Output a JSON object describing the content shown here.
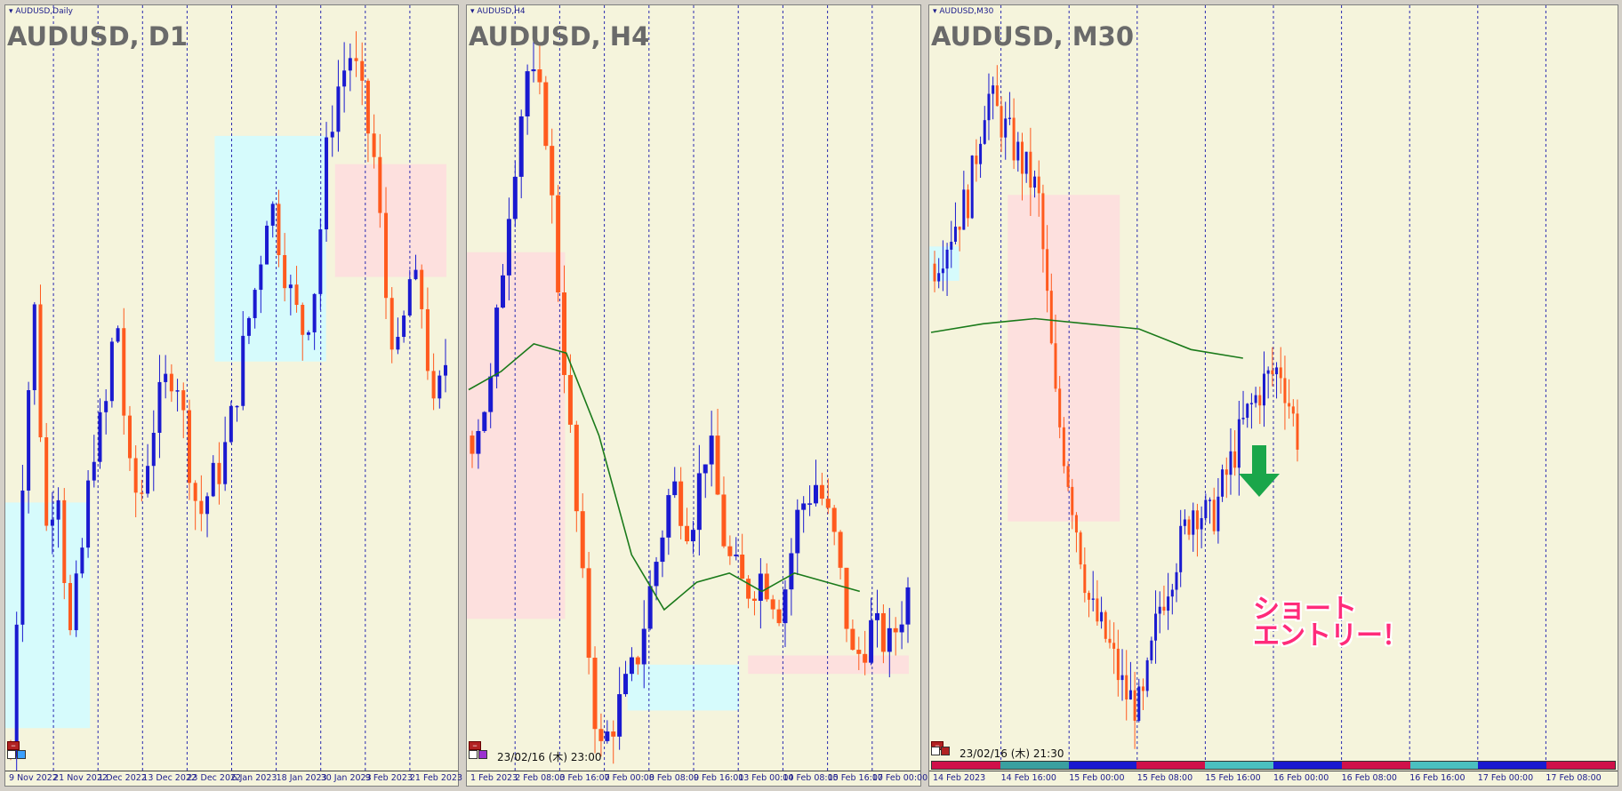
{
  "colors": {
    "background": "#f5f4dc",
    "bull": "#1a1ad0",
    "bear": "#ff5a1e",
    "ma": "#1a7a1a",
    "zone_blue": "#d6fbfc",
    "zone_pink": "#fde0de",
    "arrow": "#1aa64a",
    "annotation": "#ff2b7a"
  },
  "panes": [
    {
      "tab": "AUDUSD,Daily",
      "symbol": "AUDUSD, D1",
      "axis_labels": [
        "9 Nov 2022",
        "21 Nov 2022",
        "1 Dec 2022",
        "13 Dec 2022",
        "23 Dec 2022",
        "6 Jan 2023",
        "18 Jan 2023",
        "30 Jan 2023",
        "9 Feb 2023",
        "21 Feb 2023"
      ]
    },
    {
      "tab": "AUDUSD,H4",
      "symbol": "AUDUSD, H4",
      "cursor_time": "23/02/16 (木) 23:00",
      "axis_labels": [
        "1 Feb 2023",
        "2 Feb 08:00",
        "3 Feb 16:00",
        "7 Feb 00:00",
        "8 Feb 08:00",
        "9 Feb 16:00",
        "13 Feb 00:00",
        "14 Feb 08:00",
        "15 Feb 16:00",
        "17 Feb 00:00"
      ]
    },
    {
      "tab": "AUDUSD,M30",
      "symbol": "AUDUSD, M30",
      "cursor_time": "23/02/16 (木) 21:30",
      "axis_labels": [
        "14 Feb 2023",
        "14 Feb 16:00",
        "15 Feb 00:00",
        "15 Feb 08:00",
        "15 Feb 16:00",
        "16 Feb 00:00",
        "16 Feb 08:00",
        "16 Feb 16:00",
        "17 Feb 00:00",
        "17 Feb 08:00"
      ],
      "annotation": [
        "ショート",
        "エントリー！"
      ]
    }
  ],
  "chart_data": [
    {
      "type": "candlestick",
      "title": "AUDUSD, D1",
      "x": [
        "9 Nov 2022",
        "21 Nov 2022",
        "1 Dec 2022",
        "13 Dec 2022",
        "23 Dec 2022",
        "6 Jan 2023",
        "18 Jan 2023",
        "30 Jan 2023",
        "9 Feb 2023",
        "21 Feb 2023"
      ],
      "close_path": [
        0.62,
        0.67,
        0.7,
        0.66,
        0.67,
        0.64,
        0.655,
        0.675,
        0.68,
        0.7,
        0.67,
        0.665,
        0.678,
        0.685,
        0.69,
        0.675,
        0.662,
        0.668,
        0.672,
        0.682,
        0.695,
        0.705,
        0.72,
        0.71,
        0.7,
        0.695,
        0.705,
        0.73,
        0.74,
        0.745,
        0.735,
        0.725,
        0.7,
        0.69,
        0.705,
        0.7,
        0.68,
        0.69
      ],
      "y_min": 0.62,
      "y_max": 0.75,
      "zones": [
        {
          "color": "blue",
          "from": 0.0,
          "to": 0.19,
          "low": 0.625,
          "high": 0.665
        },
        {
          "color": "blue",
          "from": 0.47,
          "to": 0.72,
          "low": 0.69,
          "high": 0.73
        },
        {
          "color": "pink",
          "from": 0.74,
          "to": 0.99,
          "low": 0.705,
          "high": 0.725
        }
      ]
    },
    {
      "type": "candlestick",
      "title": "AUDUSD, H4",
      "x": [
        "1 Feb 2023",
        "2 Feb 08:00",
        "3 Feb 16:00",
        "7 Feb 00:00",
        "8 Feb 08:00",
        "9 Feb 16:00",
        "13 Feb 00:00",
        "14 Feb 08:00",
        "15 Feb 16:00",
        "17 Feb 00:00"
      ],
      "close_path": [
        0.705,
        0.71,
        0.73,
        0.745,
        0.74,
        0.715,
        0.69,
        0.67,
        0.675,
        0.68,
        0.69,
        0.7,
        0.695,
        0.705,
        0.692,
        0.688,
        0.69,
        0.686,
        0.697,
        0.7,
        0.693,
        0.68,
        0.684,
        0.682,
        0.688
      ],
      "moving_average": [
        0.71,
        0.712,
        0.715,
        0.714,
        0.705,
        0.692,
        0.686,
        0.689,
        0.69,
        0.688,
        0.69,
        0.689,
        0.688
      ],
      "y_min": 0.67,
      "y_max": 0.75,
      "zones": [
        {
          "color": "pink",
          "from": 0.0,
          "to": 0.22,
          "low": 0.685,
          "high": 0.725
        },
        {
          "color": "blue",
          "from": 0.36,
          "to": 0.61,
          "low": 0.675,
          "high": 0.68
        },
        {
          "color": "pink",
          "from": 0.63,
          "to": 0.99,
          "low": 0.679,
          "high": 0.681
        }
      ]
    },
    {
      "type": "candlestick",
      "title": "AUDUSD, M30",
      "x": [
        "14 Feb 2023",
        "14 Feb 16:00",
        "15 Feb 00:00",
        "15 Feb 08:00",
        "15 Feb 16:00",
        "16 Feb 00:00",
        "16 Feb 08:00",
        "16 Feb 16:00",
        "17 Feb 00:00",
        "17 Feb 08:00"
      ],
      "close_path": [
        0.698,
        0.7,
        0.702,
        0.708,
        0.706,
        0.704,
        0.702,
        0.69,
        0.684,
        0.678,
        0.676,
        0.673,
        0.672,
        0.678,
        0.681,
        0.684,
        0.683,
        0.686,
        0.689,
        0.691,
        0.692,
        0.688
      ],
      "moving_average": [
        0.694,
        0.6945,
        0.6948,
        0.6945,
        0.6942,
        0.693,
        0.6925
      ],
      "y_min": 0.67,
      "y_max": 0.712,
      "zones": [
        {
          "color": "blue",
          "from": 0.0,
          "to": 0.08,
          "low": 0.697,
          "high": 0.699
        },
        {
          "color": "pink",
          "from": 0.21,
          "to": 0.51,
          "low": 0.683,
          "high": 0.702
        }
      ],
      "signal": "short entry at last candle"
    }
  ]
}
